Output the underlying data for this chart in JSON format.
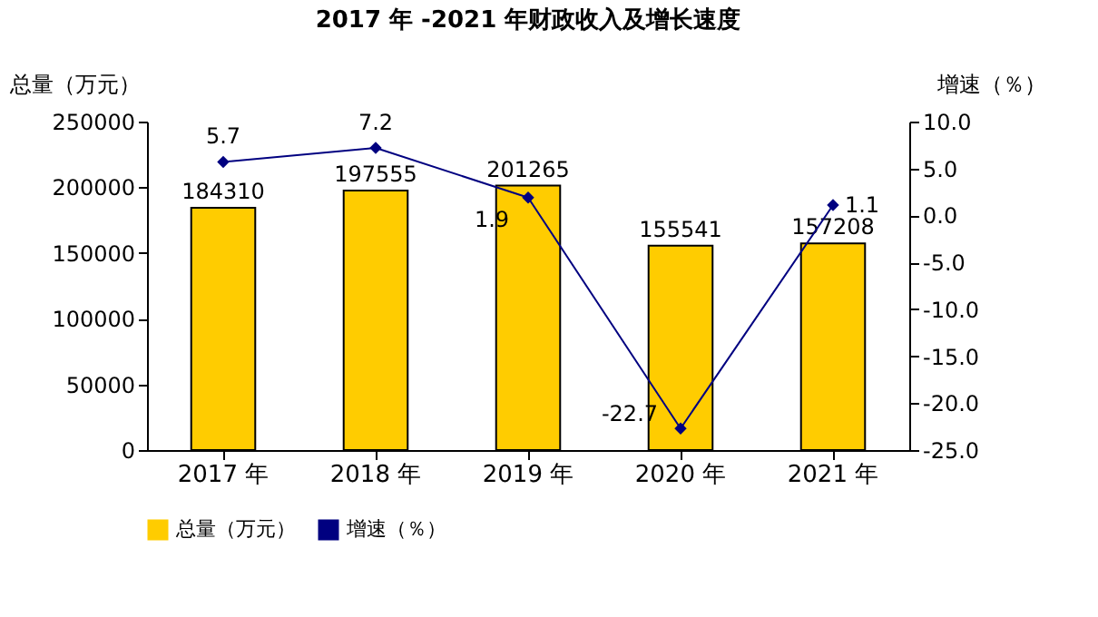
{
  "chart_data": {
    "type": "bar",
    "title": "2017 年 -2021 年财政收入及增长速度",
    "ylabel": "总量（万元）",
    "y2label": "增速（％）",
    "categories": [
      "2017 年",
      "2018 年",
      "2019 年",
      "2020 年",
      "2021 年"
    ],
    "series": [
      {
        "name": "总量（万元）",
        "color": "#ffcc00",
        "values": [
          184310,
          197555,
          201265,
          155541,
          157208
        ]
      },
      {
        "name": "增速（％）",
        "type": "line",
        "axis": "y2",
        "color": "#000080",
        "marker": "diamond",
        "values": [
          5.7,
          7.2,
          1.9,
          -22.7,
          1.1
        ]
      }
    ],
    "ylim": [
      0,
      250000
    ],
    "yticks": [
      0,
      50000,
      100000,
      150000,
      200000,
      250000
    ],
    "y2lim": [
      -25,
      10
    ],
    "y2ticks": [
      {
        "value": 10,
        "label": "10.0"
      },
      {
        "value": 5,
        "label": "5.0"
      },
      {
        "value": 0,
        "label": "0.0"
      },
      {
        "value": -5,
        "label": "-5.0"
      },
      {
        "value": -10,
        "label": "-10.0"
      },
      {
        "value": -15,
        "label": "-15.0"
      },
      {
        "value": -20,
        "label": "-20.0"
      },
      {
        "value": -25,
        "label": "-25.0"
      }
    ],
    "data_labels": true,
    "grid": false,
    "legend": "bottom"
  }
}
